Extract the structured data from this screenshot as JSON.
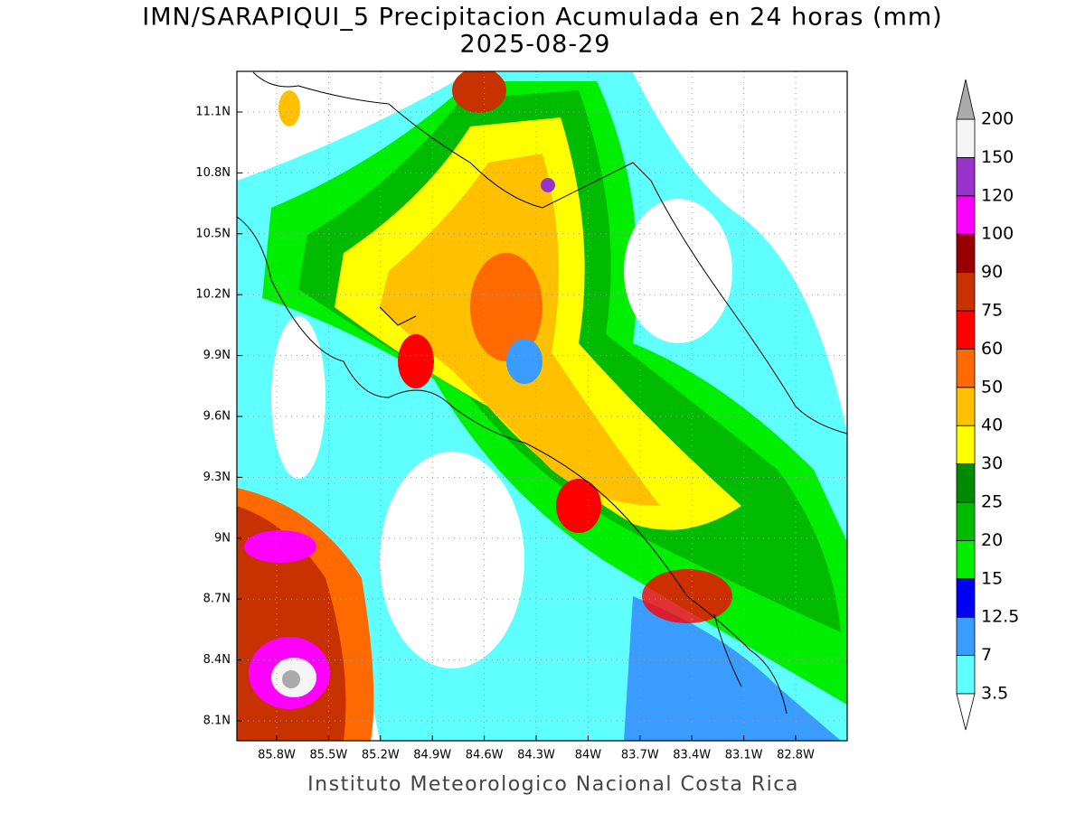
{
  "title": "IMN/SARAPIQUI_5 Precipitacion Acumulada en 24 horas (mm)",
  "subtitle": "2025-08-29",
  "footer": "Instituto Meteorologico Nacional Costa Rica",
  "lat_ticks": [
    "11.1N",
    "10.8N",
    "10.5N",
    "10.2N",
    "9.9N",
    "9.6N",
    "9.3N",
    "9N",
    "8.7N",
    "8.4N",
    "8.1N"
  ],
  "lon_ticks": [
    "85.8W",
    "85.5W",
    "85.2W",
    "84.9W",
    "84.6W",
    "84.3W",
    "84W",
    "83.7W",
    "83.4W",
    "83.1W",
    "82.8W"
  ],
  "legend": {
    "levels": [
      3.5,
      7,
      12.5,
      15,
      20,
      25,
      30,
      40,
      50,
      60,
      75,
      90,
      100,
      120,
      150,
      200
    ],
    "colors": [
      "#5fffff",
      "#3a9cff",
      "#0000f5",
      "#00ee00",
      "#00bb00",
      "#008a00",
      "#ffff00",
      "#ffc000",
      "#ff6a00",
      "#ff0000",
      "#c83200",
      "#960000",
      "#ff00ff",
      "#9933cc",
      "#f5f5f5"
    ],
    "under_color": "#ffffff",
    "over_color": "#aaaaaa"
  }
}
